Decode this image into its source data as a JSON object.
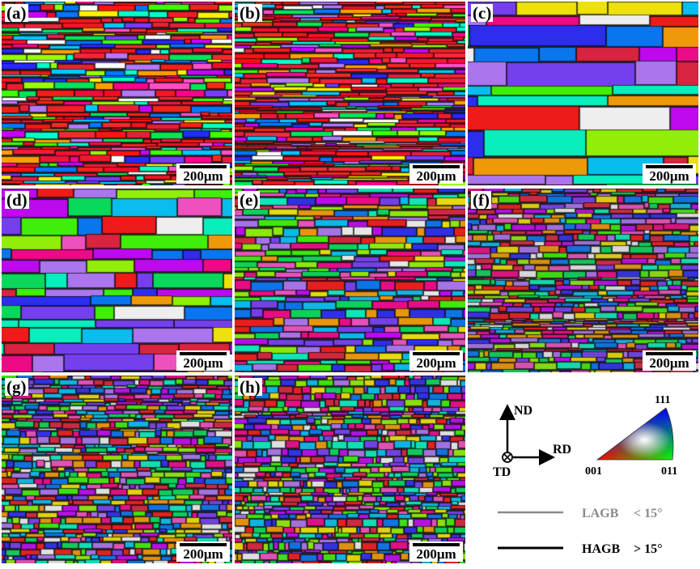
{
  "panels": [
    {
      "label": "(a)",
      "scale": "200μm",
      "seed": 11,
      "grainW": 28,
      "grainH": 6,
      "sat": 1.0
    },
    {
      "label": "(b)",
      "scale": "200μm",
      "seed": 23,
      "grainW": 30,
      "grainH": 5,
      "sat": 1.0
    },
    {
      "label": "(c)",
      "scale": "200μm",
      "seed": 37,
      "grainW": 90,
      "grainH": 22,
      "sat": 0.9
    },
    {
      "label": "(d)",
      "scale": "200μm",
      "seed": 41,
      "grainW": 60,
      "grainH": 16,
      "sat": 0.9
    },
    {
      "label": "(e)",
      "scale": "200μm",
      "seed": 53,
      "grainW": 26,
      "grainH": 8,
      "sat": 0.85
    },
    {
      "label": "(f)",
      "scale": "200μm",
      "seed": 67,
      "grainW": 18,
      "grainH": 6,
      "sat": 0.75
    },
    {
      "label": "(g)",
      "scale": "200μm",
      "seed": 79,
      "grainW": 14,
      "grainH": 6,
      "sat": 0.8
    },
    {
      "label": "(h)",
      "scale": "200μm",
      "seed": 83,
      "grainW": 12,
      "grainH": 7,
      "sat": 0.8
    }
  ],
  "legend": {
    "axes": {
      "nd": "ND",
      "rd": "RD",
      "td": "TD"
    },
    "ipf": {
      "top": "111",
      "left": "001",
      "right": "011"
    },
    "boundaries": [
      {
        "name": "LAGB",
        "condition": "< 15°",
        "color": "#8a8a8a"
      },
      {
        "name": "HAGB",
        "condition": "> 15°",
        "color": "#000000"
      }
    ]
  }
}
